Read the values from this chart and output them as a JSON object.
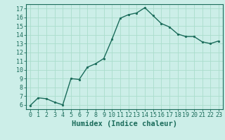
{
  "x": [
    0,
    1,
    2,
    3,
    4,
    5,
    6,
    7,
    8,
    9,
    10,
    11,
    12,
    13,
    14,
    15,
    16,
    17,
    18,
    19,
    20,
    21,
    22,
    23
  ],
  "y": [
    5.9,
    6.8,
    6.7,
    6.3,
    6.0,
    9.0,
    8.9,
    10.3,
    10.7,
    11.3,
    13.5,
    15.9,
    16.3,
    16.5,
    17.1,
    16.2,
    15.3,
    14.9,
    14.1,
    13.8,
    13.8,
    13.2,
    13.0,
    13.3
  ],
  "line_color": "#1a6b5a",
  "marker": "o",
  "markersize": 1.8,
  "linewidth": 1.0,
  "bg_color": "#cceee8",
  "grid_color": "#aaddcc",
  "xlabel": "Humidex (Indice chaleur)",
  "xlim": [
    -0.5,
    23.5
  ],
  "ylim": [
    5.5,
    17.5
  ],
  "yticks": [
    6,
    7,
    8,
    9,
    10,
    11,
    12,
    13,
    14,
    15,
    16,
    17
  ],
  "xticks": [
    0,
    1,
    2,
    3,
    4,
    5,
    6,
    7,
    8,
    9,
    10,
    11,
    12,
    13,
    14,
    15,
    16,
    17,
    18,
    19,
    20,
    21,
    22,
    23
  ],
  "tick_fontsize": 6.0,
  "xlabel_fontsize": 7.5,
  "spine_color": "#1a6b5a"
}
